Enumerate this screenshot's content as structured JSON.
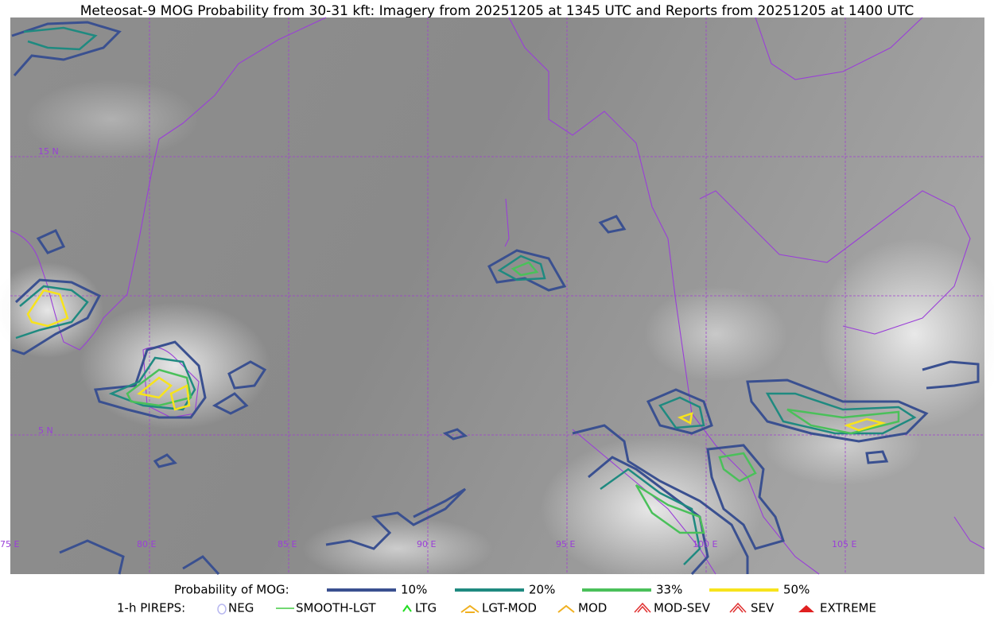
{
  "title": "Meteosat-9 MOG Probability from 30-31 kft: Imagery from 20251205 at 1345 UTC and Reports from 20251205 at 1400 UTC",
  "map": {
    "lat_labels": [
      "15 N",
      "5 N"
    ],
    "lon_labels": [
      "75 E",
      "80 E",
      "85 E",
      "90 E",
      "95 E",
      "100 E",
      "105 E"
    ]
  },
  "legend": {
    "probability_title": "Probability of MOG:",
    "probability_levels": [
      "10%",
      "20%",
      "33%",
      "50%"
    ],
    "pireps_title": "1-h PIREPS:",
    "pireps": [
      "NEG",
      "SMOOTH-LGT",
      "LTG",
      "LGT-MOD",
      "MOD",
      "MOD-SEV",
      "SEV",
      "EXTREME"
    ]
  }
}
